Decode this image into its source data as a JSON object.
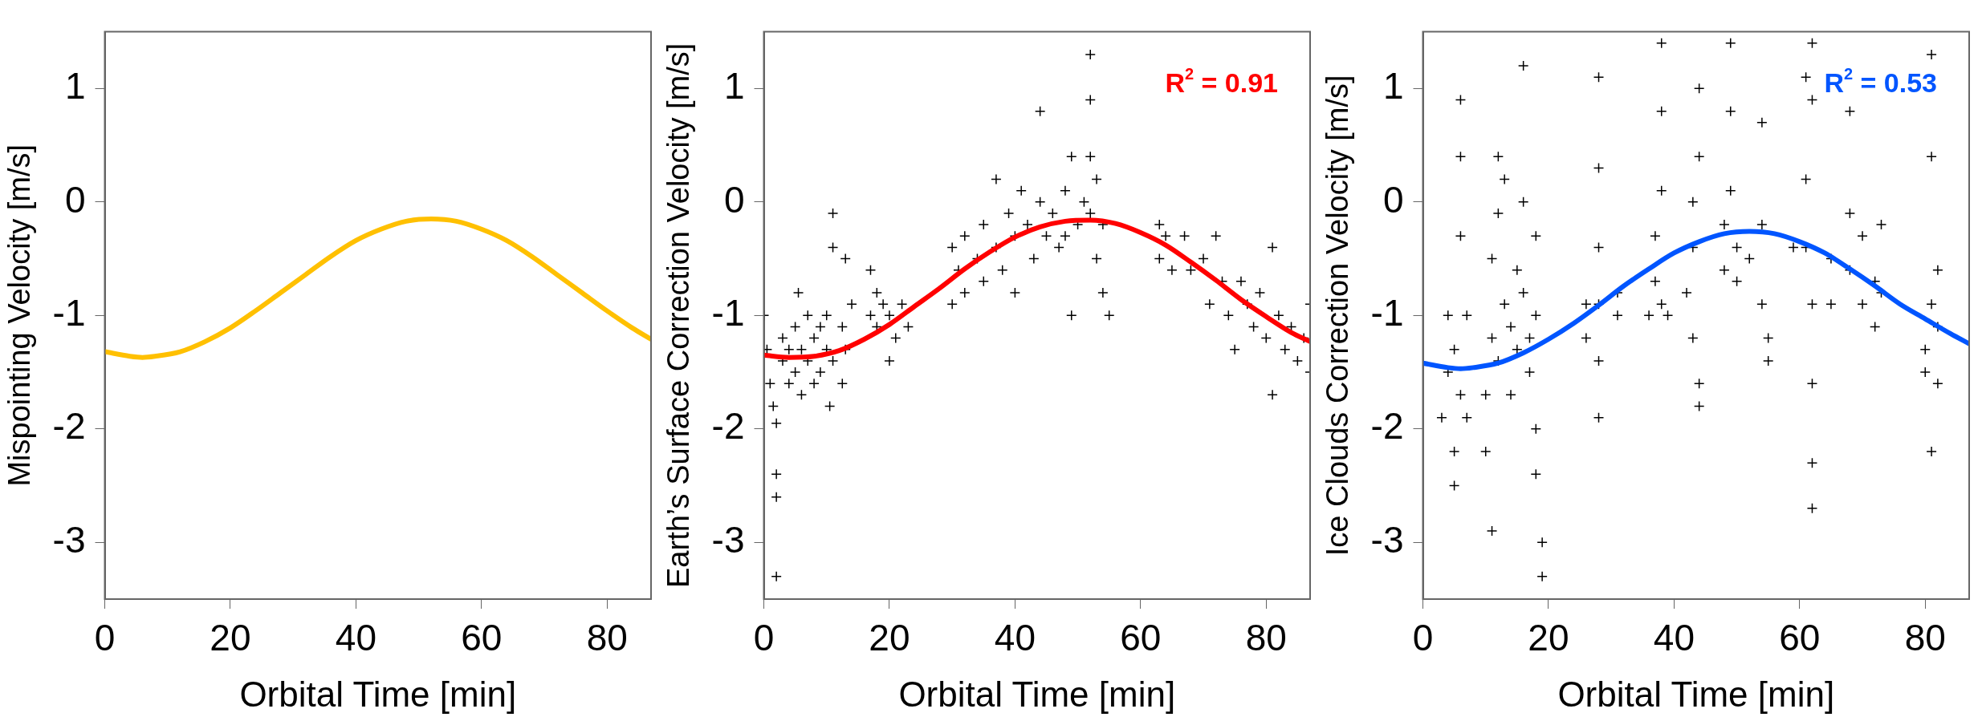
{
  "chart_data": [
    {
      "type": "line",
      "xlabel": "Orbital Time [min]",
      "ylabel": "Mispointing Velocity [m/s]",
      "xlim": [
        0,
        87
      ],
      "ylim": [
        -3.5,
        1.5
      ],
      "xticks": [
        0,
        20,
        40,
        60,
        80
      ],
      "yticks": [
        -3,
        -2,
        -1,
        0,
        1
      ],
      "grid": false,
      "legend": false,
      "series": [
        {
          "color": "#ffc000",
          "x": [
            0,
            4,
            6,
            8,
            12,
            16,
            20,
            24,
            28,
            32,
            36,
            40,
            44,
            48,
            52,
            56,
            60,
            64,
            68,
            72,
            76,
            80,
            84,
            87
          ],
          "values": [
            -1.32,
            -1.36,
            -1.37,
            -1.36,
            -1.32,
            -1.23,
            -1.11,
            -0.96,
            -0.8,
            -0.64,
            -0.48,
            -0.34,
            -0.24,
            -0.17,
            -0.15,
            -0.17,
            -0.24,
            -0.34,
            -0.48,
            -0.64,
            -0.8,
            -0.96,
            -1.11,
            -1.21
          ]
        }
      ]
    },
    {
      "type": "scatter",
      "xlabel": "Orbital Time [min]",
      "ylabel": "Earth’s Surface Correction Velocity [m/s]",
      "xlim": [
        0,
        87
      ],
      "ylim": [
        -3.5,
        1.5
      ],
      "xticks": [
        0,
        20,
        40,
        60,
        80
      ],
      "yticks": [
        -3,
        -2,
        -1,
        0,
        1
      ],
      "grid": false,
      "legend": false,
      "annotations": [
        "R$^{2}$ = 0.91"
      ],
      "series": [
        {
          "marker": "cross",
          "color": "#000000",
          "x": [
            0,
            0.5,
            1,
            1.5,
            2,
            2,
            2,
            2,
            3,
            3,
            4,
            4,
            5,
            5,
            5.5,
            6,
            6,
            7,
            7,
            8,
            8,
            9,
            9,
            10,
            10,
            10.5,
            11,
            11,
            11,
            12.5,
            12.5,
            13,
            13,
            14,
            17,
            17,
            18,
            18,
            19,
            20,
            20,
            21,
            22,
            23,
            30,
            30,
            31,
            32,
            32,
            34,
            35,
            35,
            37,
            37,
            38,
            39,
            40,
            40,
            41,
            42,
            43,
            44,
            44,
            45,
            46,
            47,
            48,
            48,
            49,
            49,
            50,
            51,
            52,
            52,
            52,
            52,
            53,
            53,
            54,
            54,
            55,
            63,
            63,
            64,
            65,
            67,
            68,
            70,
            71,
            72,
            73,
            74,
            75,
            76,
            77,
            78,
            79,
            80,
            81,
            81,
            82,
            83,
            84,
            85,
            86,
            87,
            87
          ],
          "values": [
            -1.0,
            -1.3,
            -1.6,
            -1.8,
            -1.95,
            -2.4,
            -3.3,
            -2.6,
            -1.4,
            -1.2,
            -1.3,
            -1.6,
            -1.1,
            -1.5,
            -0.8,
            -1.3,
            -1.7,
            -1.0,
            -1.4,
            -1.2,
            -1.6,
            -1.1,
            -1.5,
            -1.0,
            -1.3,
            -1.8,
            -0.1,
            -0.4,
            -1.4,
            -1.1,
            -1.6,
            -0.5,
            -1.3,
            -0.9,
            -0.6,
            -1.0,
            -0.8,
            -1.1,
            -0.9,
            -1.0,
            -1.4,
            -1.2,
            -0.9,
            -1.1,
            -0.4,
            -0.9,
            -0.6,
            -0.3,
            -0.8,
            -0.5,
            -0.2,
            -0.7,
            0.2,
            -0.4,
            -0.6,
            -0.1,
            -0.3,
            -0.8,
            0.1,
            -0.2,
            -0.5,
            0.8,
            0.0,
            -0.3,
            -0.1,
            -0.4,
            0.1,
            -0.3,
            0.4,
            -1.0,
            -0.2,
            0.0,
            1.3,
            0.9,
            0.4,
            -0.1,
            0.2,
            -0.5,
            -0.8,
            -0.2,
            -1.0,
            -0.2,
            -0.5,
            -0.3,
            -0.6,
            -0.3,
            -0.6,
            -0.5,
            -0.9,
            -0.3,
            -0.7,
            -1.0,
            -1.3,
            -0.7,
            -0.9,
            -1.1,
            -0.8,
            -1.2,
            -0.4,
            -1.7,
            -1.0,
            -1.3,
            -1.1,
            -1.4,
            -1.2,
            -1.5,
            -0.9
          ]
        },
        {
          "type": "line",
          "color": "#ff0000",
          "x": [
            0,
            4,
            8,
            12,
            16,
            20,
            24,
            28,
            32,
            36,
            40,
            44,
            48,
            52,
            56,
            60,
            64,
            68,
            72,
            76,
            80,
            84,
            87
          ],
          "values": [
            -1.35,
            -1.37,
            -1.36,
            -1.31,
            -1.21,
            -1.08,
            -0.92,
            -0.76,
            -0.59,
            -0.44,
            -0.31,
            -0.22,
            -0.17,
            -0.16,
            -0.19,
            -0.27,
            -0.38,
            -0.53,
            -0.69,
            -0.86,
            -1.01,
            -1.15,
            -1.23
          ]
        }
      ]
    },
    {
      "type": "scatter",
      "xlabel": "Orbital Time [min]",
      "ylabel": "Ice Clouds Correction Velocity [m/s]",
      "xlim": [
        0,
        87
      ],
      "ylim": [
        -3.5,
        1.5
      ],
      "xticks": [
        0,
        20,
        40,
        60,
        80
      ],
      "yticks": [
        -3,
        -2,
        -1,
        0,
        1
      ],
      "grid": false,
      "legend": false,
      "annotations": [
        "R$^{2}$ = 0.53"
      ],
      "series": [
        {
          "marker": "cross",
          "color": "#000000",
          "x": [
            3,
            4,
            4,
            5,
            5,
            5,
            6,
            6,
            6,
            6,
            7,
            7,
            10,
            10,
            11,
            11,
            11,
            12,
            12,
            12,
            13,
            13,
            14,
            14,
            15,
            15,
            16,
            16,
            16,
            17,
            17,
            18,
            18,
            18,
            18,
            19,
            19,
            26,
            26,
            28,
            28,
            28,
            28,
            28,
            28,
            31,
            31,
            36,
            37,
            37,
            38,
            38,
            38,
            38,
            39,
            42,
            43,
            43,
            43,
            44,
            44,
            44,
            44,
            48,
            48,
            49,
            49,
            49,
            50,
            50,
            52,
            54,
            54,
            54,
            55,
            55,
            59,
            61,
            61,
            61,
            62,
            62,
            62,
            62,
            62,
            62,
            65,
            65,
            68,
            68,
            68,
            70,
            70,
            72,
            72,
            73,
            73,
            80,
            80,
            81,
            81,
            81,
            81,
            82,
            82,
            82
          ],
          "values": [
            -1.9,
            -1.5,
            -1.0,
            -1.3,
            -2.2,
            -2.5,
            0.9,
            0.4,
            -0.3,
            -1.7,
            -1.0,
            -1.9,
            -1.7,
            -2.2,
            -2.9,
            -1.2,
            -0.5,
            0.4,
            -0.1,
            -1.4,
            -0.9,
            0.2,
            -1.1,
            -1.7,
            -0.6,
            -1.3,
            1.2,
            0.0,
            -0.8,
            -1.2,
            -1.5,
            -0.3,
            -1.0,
            -2.0,
            -2.4,
            -3.0,
            -3.3,
            -0.9,
            -1.2,
            -0.4,
            -0.9,
            -1.4,
            1.1,
            0.3,
            -1.9,
            -0.8,
            -1.0,
            -1.0,
            -0.3,
            -0.7,
            0.1,
            0.8,
            1.4,
            -0.9,
            -1.0,
            -0.8,
            0.0,
            -0.4,
            -1.2,
            1.0,
            0.4,
            -1.6,
            -1.8,
            -0.2,
            -0.6,
            0.1,
            1.4,
            0.8,
            -0.4,
            -0.7,
            -0.5,
            -0.2,
            0.7,
            -0.9,
            -1.2,
            -1.4,
            -0.4,
            0.2,
            -0.4,
            1.1,
            0.9,
            1.4,
            -0.9,
            -1.6,
            -2.3,
            -2.7,
            -0.5,
            -0.9,
            -0.1,
            0.8,
            -0.6,
            -0.3,
            -0.9,
            -0.7,
            -1.1,
            -0.2,
            -0.8,
            -1.3,
            -1.5,
            -0.9,
            -2.2,
            1.3,
            0.4,
            -0.6,
            -1.1,
            -1.6
          ]
        },
        {
          "type": "line",
          "color": "#0055ff",
          "x": [
            0,
            4,
            6,
            8,
            12,
            16,
            20,
            24,
            28,
            32,
            36,
            40,
            44,
            48,
            52,
            56,
            60,
            64,
            68,
            72,
            76,
            80,
            84,
            87
          ],
          "values": [
            -1.42,
            -1.46,
            -1.47,
            -1.46,
            -1.42,
            -1.33,
            -1.21,
            -1.07,
            -0.91,
            -0.74,
            -0.59,
            -0.45,
            -0.35,
            -0.28,
            -0.26,
            -0.28,
            -0.35,
            -0.45,
            -0.59,
            -0.74,
            -0.9,
            -1.03,
            -1.16,
            -1.25
          ]
        }
      ]
    }
  ]
}
